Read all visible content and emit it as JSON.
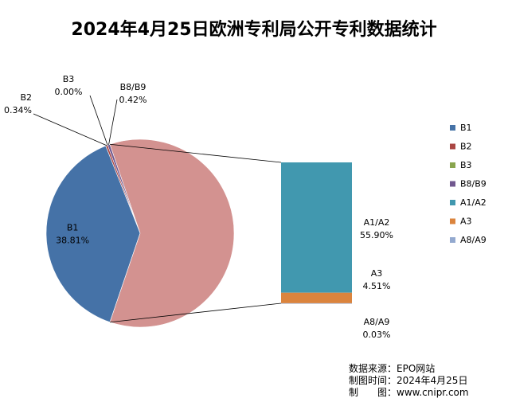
{
  "chart_data": {
    "type": "pie",
    "title": "2024年4月25日欧洲专利局公开专利数据统计",
    "pie_slices": [
      {
        "label": "B1",
        "value": 38.81,
        "display": "38.81%",
        "color": "#4572A7"
      },
      {
        "label": "B2",
        "value": 0.34,
        "display": "0.34%",
        "color": "#AA4643"
      },
      {
        "label": "B3",
        "value": 0.0,
        "display": "0.00%",
        "color": "#89A54E"
      },
      {
        "label": "B8/B9",
        "value": 0.42,
        "display": "0.42%",
        "color": "#71588F"
      }
    ],
    "aggregate": {
      "value": 60.44,
      "color": "#D39290"
    },
    "bar_stack": [
      {
        "label": "A1/A2",
        "value": 55.9,
        "display": "55.90%",
        "color": "#4198AF"
      },
      {
        "label": "A3",
        "value": 4.51,
        "display": "4.51%",
        "color": "#DB843D"
      },
      {
        "label": "A8/A9",
        "value": 0.03,
        "display": "0.03%",
        "color": "#93A9CF"
      }
    ],
    "legend_position": "right",
    "legend": [
      {
        "label": "B1",
        "color": "#4572A7"
      },
      {
        "label": "B2",
        "color": "#AA4643"
      },
      {
        "label": "B3",
        "color": "#89A54E"
      },
      {
        "label": "B8/B9",
        "color": "#71588F"
      },
      {
        "label": "A1/A2",
        "color": "#4198AF"
      },
      {
        "label": "A3",
        "color": "#DB843D"
      },
      {
        "label": "A8/A9",
        "color": "#93A9CF"
      }
    ]
  },
  "source": {
    "line1": "数据来源：EPO网站",
    "line2": "制图时间：2024年4月25日",
    "line3": "制　　图：www.cnipr.com"
  }
}
